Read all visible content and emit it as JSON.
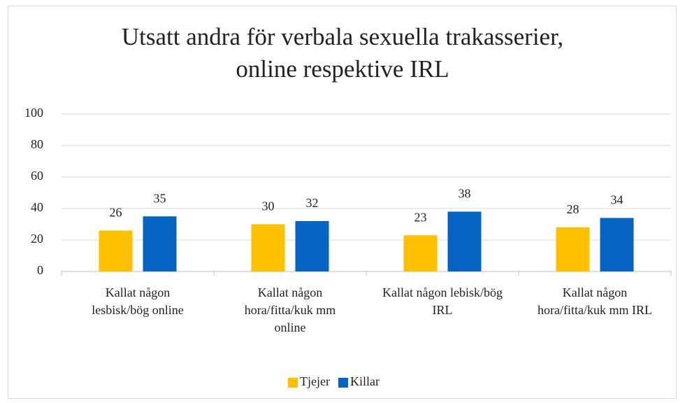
{
  "chart_data": {
    "type": "bar",
    "title": "Utsatt andra för verbala sexuella trakasserier, online respektive IRL",
    "categories": [
      "Kallat någon lesbisk/bög online",
      "Kallat någon hora/fitta/kuk mm online",
      "Kallat någon lebisk/bög IRL",
      "Kallat någon hora/fitta/kuk mm IRL"
    ],
    "series": [
      {
        "name": "Tjejer",
        "color": "#ffc000",
        "values": [
          26,
          30,
          23,
          28
        ]
      },
      {
        "name": "Killar",
        "color": "#0563c1",
        "values": [
          35,
          32,
          38,
          34
        ]
      }
    ],
    "ylim": [
      0,
      100
    ],
    "yticks": [
      0,
      20,
      40,
      60,
      80,
      100
    ],
    "grid": true,
    "legend": "bottom"
  }
}
